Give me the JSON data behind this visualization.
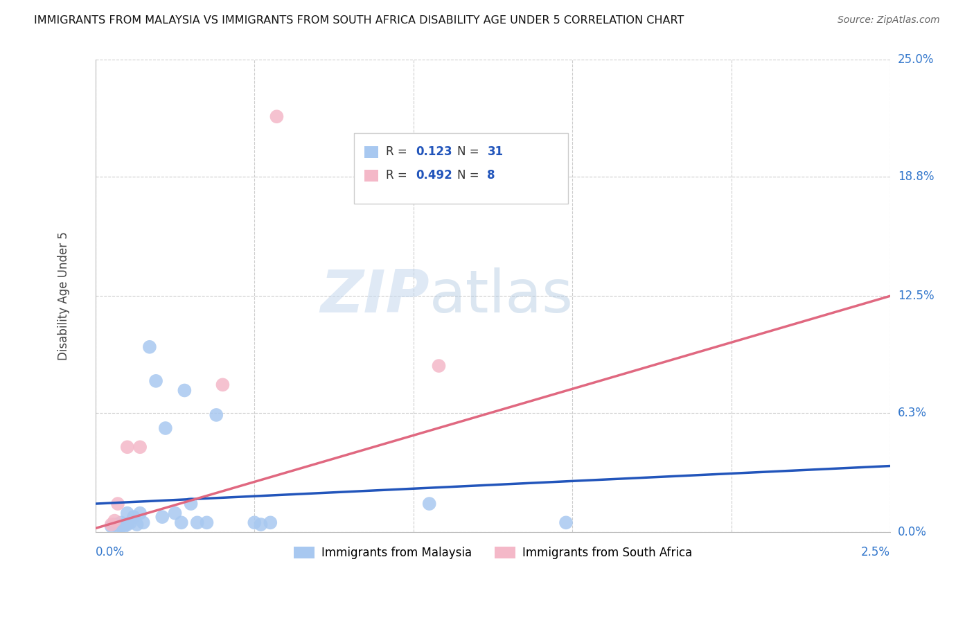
{
  "title": "IMMIGRANTS FROM MALAYSIA VS IMMIGRANTS FROM SOUTH AFRICA DISABILITY AGE UNDER 5 CORRELATION CHART",
  "source": "Source: ZipAtlas.com",
  "ylabel": "Disability Age Under 5",
  "ytick_labels": [
    "0.0%",
    "6.3%",
    "12.5%",
    "18.8%",
    "25.0%"
  ],
  "ytick_values": [
    0.0,
    6.3,
    12.5,
    18.8,
    25.0
  ],
  "xlim": [
    0.0,
    2.5
  ],
  "ylim": [
    0.0,
    25.0
  ],
  "malaysia_color": "#a8c8f0",
  "south_africa_color": "#f4b8c8",
  "line_malaysia_color": "#2255bb",
  "line_sa_color": "#e06880",
  "malaysia_x": [
    0.05,
    0.06,
    0.07,
    0.07,
    0.08,
    0.08,
    0.09,
    0.09,
    0.1,
    0.1,
    0.11,
    0.12,
    0.13,
    0.14,
    0.15,
    0.17,
    0.19,
    0.21,
    0.22,
    0.25,
    0.27,
    0.28,
    0.3,
    0.32,
    0.35,
    0.38,
    0.5,
    0.52,
    0.55,
    1.05,
    1.48
  ],
  "malaysia_y": [
    0.3,
    0.4,
    0.3,
    0.4,
    0.3,
    0.5,
    0.4,
    0.3,
    1.0,
    0.4,
    0.5,
    0.8,
    0.4,
    1.0,
    0.5,
    9.8,
    8.0,
    0.8,
    5.5,
    1.0,
    0.5,
    7.5,
    1.5,
    0.5,
    0.5,
    6.2,
    0.5,
    0.4,
    0.5,
    1.5,
    0.5
  ],
  "sa_x": [
    0.05,
    0.06,
    0.07,
    0.1,
    0.14,
    0.4,
    1.08,
    0.57
  ],
  "sa_y": [
    0.4,
    0.6,
    1.5,
    4.5,
    4.5,
    7.8,
    8.8,
    22.0
  ],
  "line_malaysia_x0": 0.0,
  "line_malaysia_y0": 1.5,
  "line_malaysia_x1": 2.5,
  "line_malaysia_y1": 3.5,
  "line_sa_x0": 0.0,
  "line_sa_y0": 0.2,
  "line_sa_x1": 2.5,
  "line_sa_y1": 12.5,
  "watermark_line1": "ZIP",
  "watermark_line2": "atlas",
  "legend_label1": "Immigrants from Malaysia",
  "legend_label2": "Immigrants from South Africa"
}
